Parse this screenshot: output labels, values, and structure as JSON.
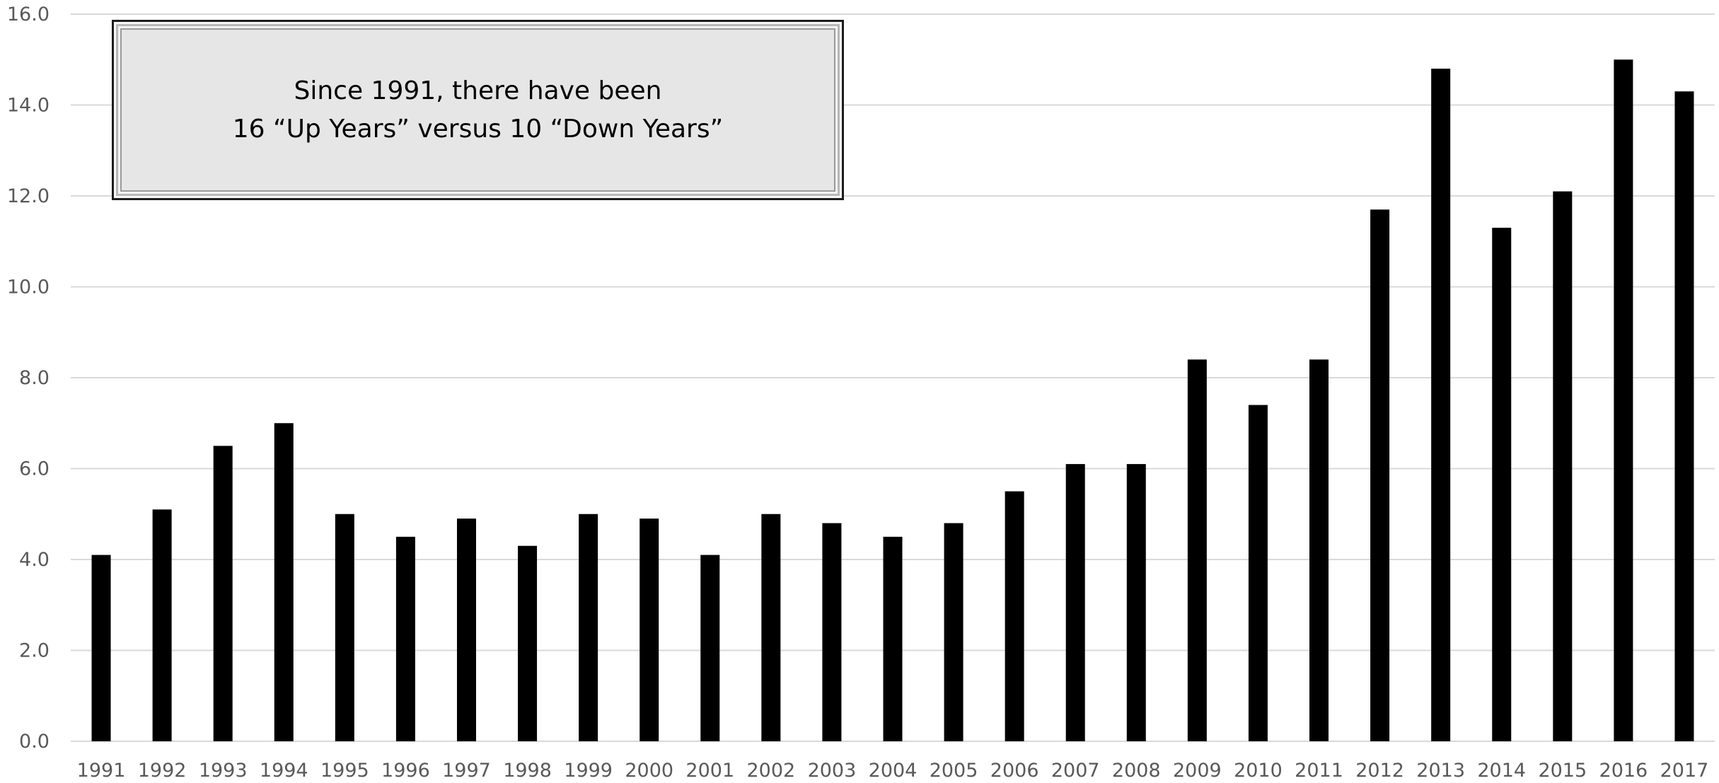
{
  "chart_data": {
    "type": "bar",
    "title": "",
    "xlabel": "",
    "ylabel": "",
    "ylim": [
      0,
      16
    ],
    "y_ticks": [
      "0.0",
      "2.0",
      "4.0",
      "6.0",
      "8.0",
      "10.0",
      "12.0",
      "14.0",
      "16.0"
    ],
    "grid": true,
    "legend": "none",
    "categories": [
      "1991",
      "1992",
      "1993",
      "1994",
      "1995",
      "1996",
      "1997",
      "1998",
      "1999",
      "2000",
      "2001",
      "2002",
      "2003",
      "2004",
      "2005",
      "2006",
      "2007",
      "2008",
      "2009",
      "2010",
      "2011",
      "2012",
      "2013",
      "2014",
      "2015",
      "2016",
      "2017"
    ],
    "values": [
      4.1,
      5.1,
      6.5,
      7.0,
      5.0,
      4.5,
      4.9,
      4.3,
      5.0,
      4.9,
      4.1,
      5.0,
      4.8,
      4.5,
      4.8,
      5.5,
      6.1,
      6.1,
      8.4,
      7.4,
      8.4,
      11.7,
      14.8,
      11.3,
      12.1,
      15.0,
      14.3
    ],
    "bar_color": "#000000",
    "grid_color": "#d9d9d9",
    "annotation": {
      "line1": "Since 1991, there have been",
      "line2": "16 “Up Years” versus 10 “Down Years”"
    }
  }
}
